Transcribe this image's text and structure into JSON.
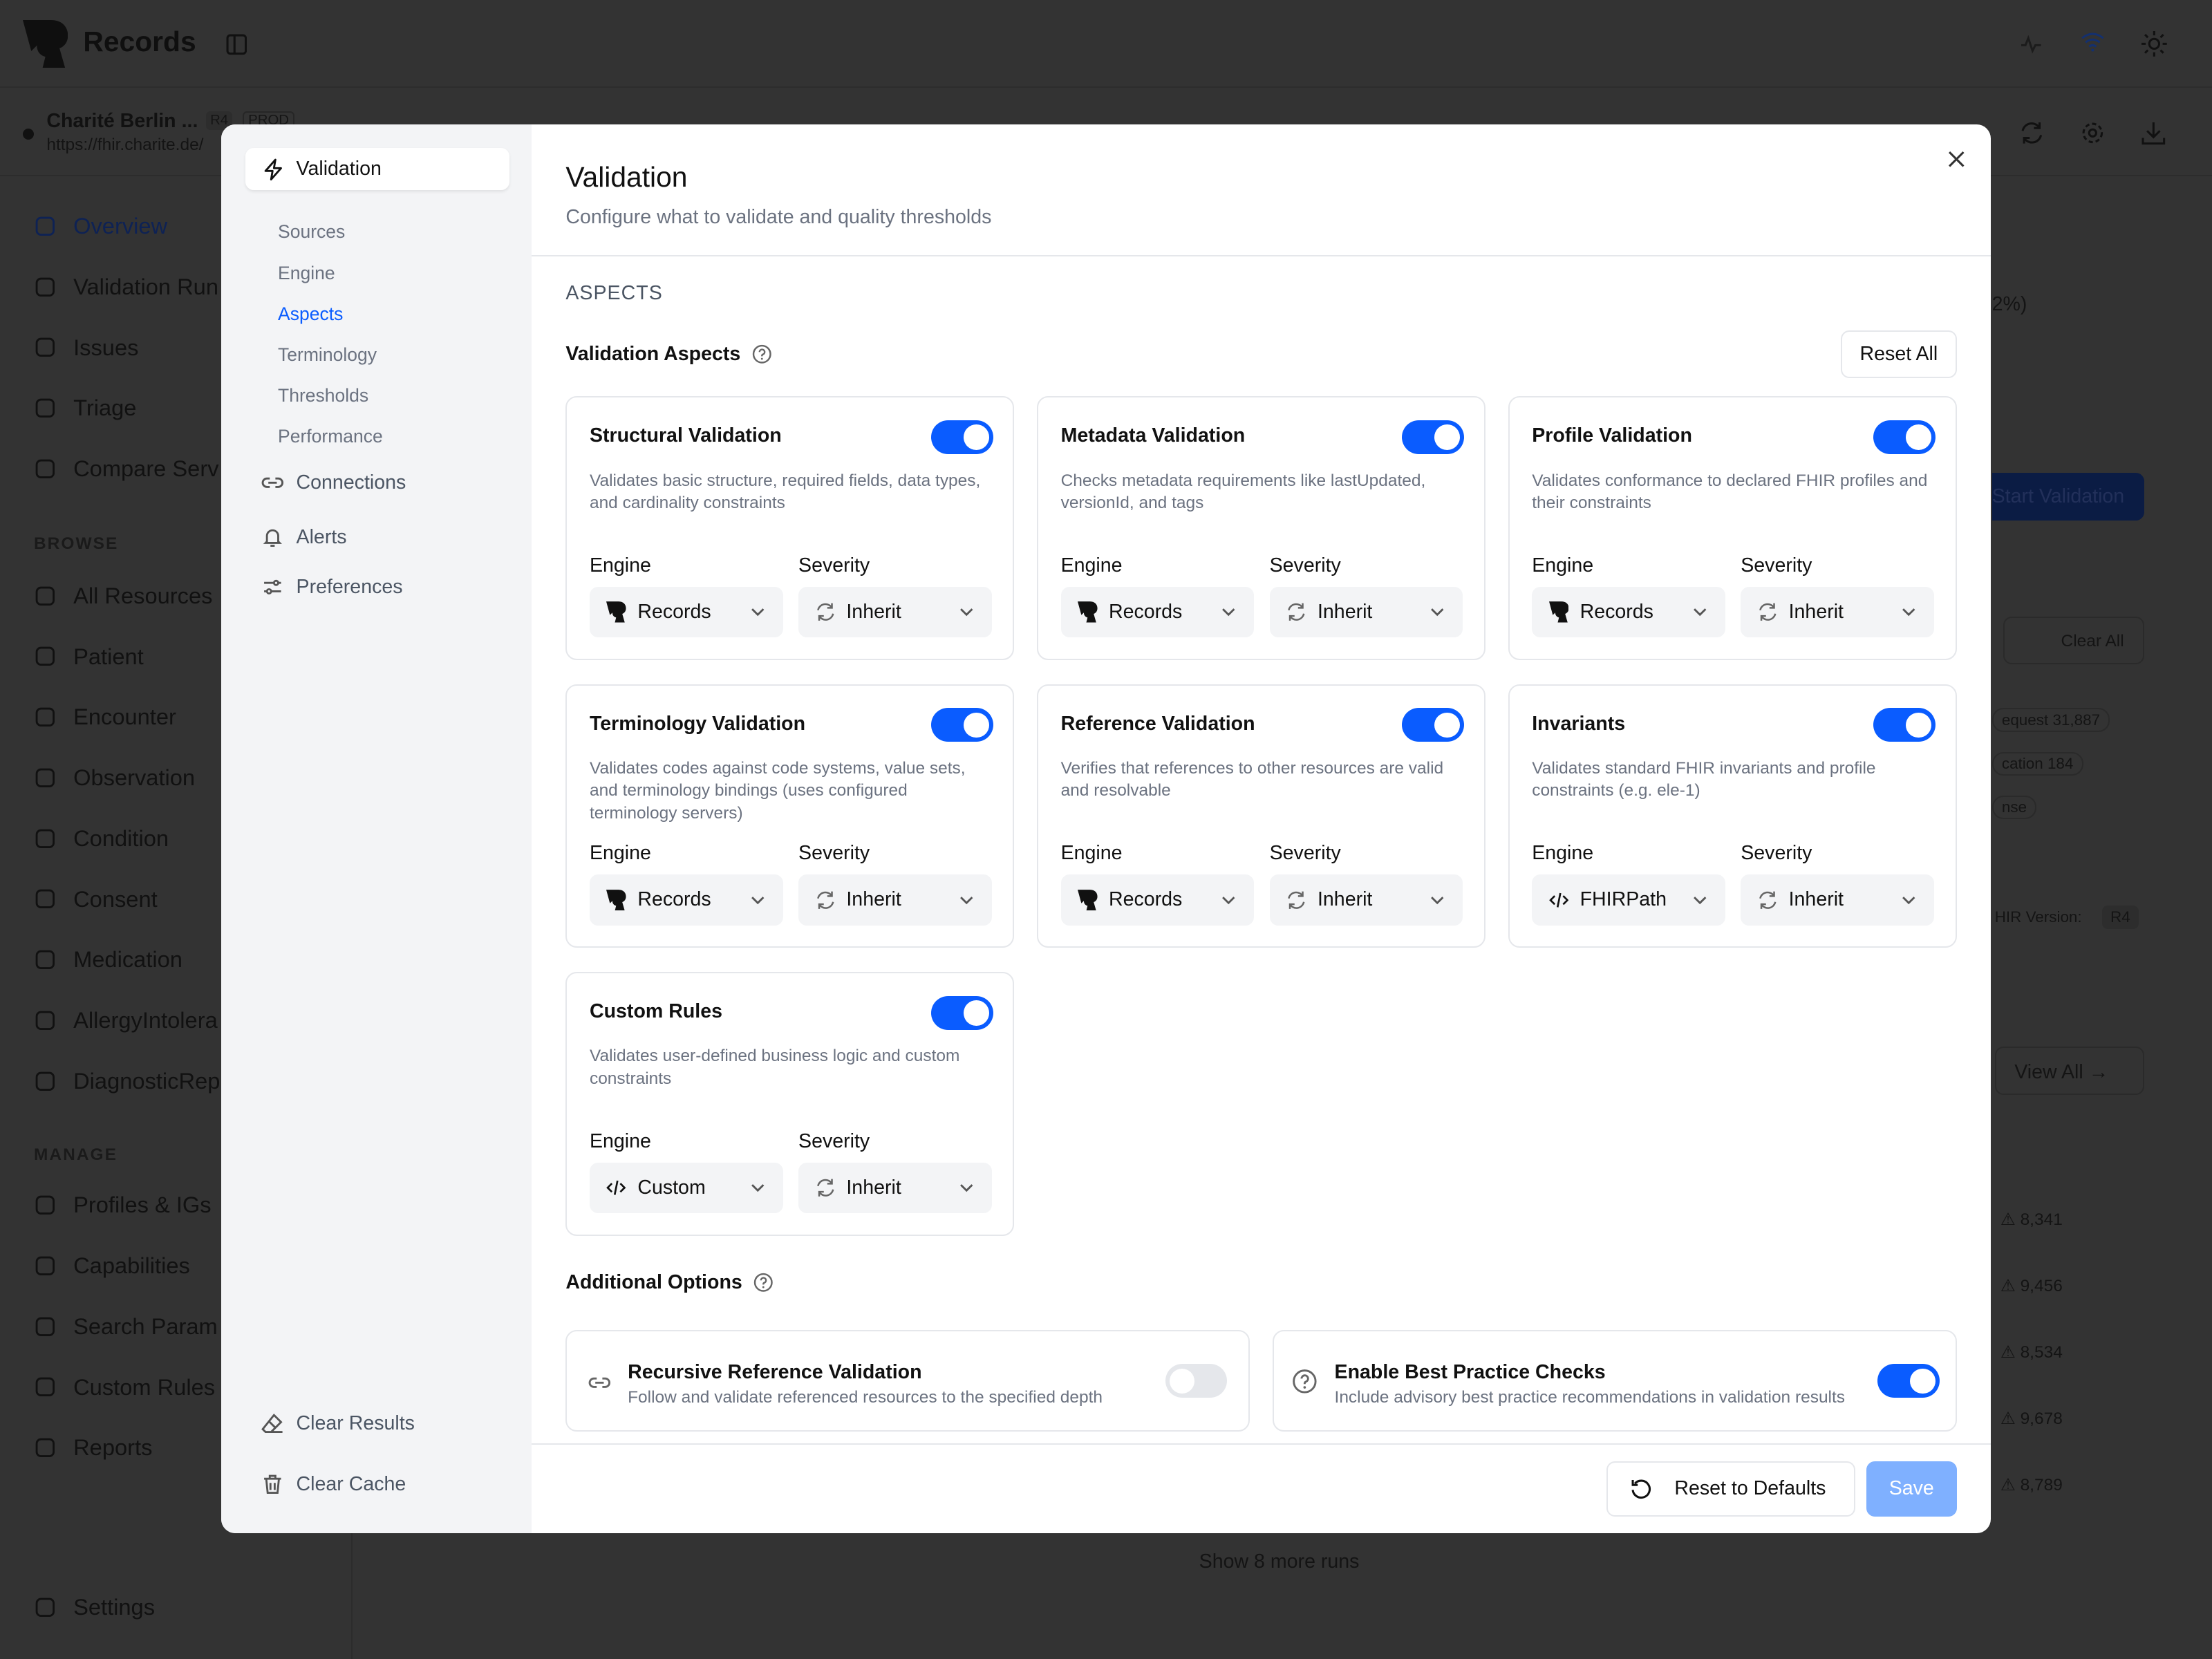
{
  "app": {
    "name": "Records",
    "server_name": "Charité Berlin ...",
    "fhir_badge": "R4",
    "env_badge": "PROD",
    "server_url": "https://fhir.charite.de/"
  },
  "sidebar": {
    "items": [
      {
        "label": "Overview",
        "icon": "pie-chart-icon"
      },
      {
        "label": "Validation Run",
        "icon": "play-icon"
      },
      {
        "label": "Issues",
        "icon": "warning-icon"
      },
      {
        "label": "Triage",
        "icon": "clipboard-icon"
      },
      {
        "label": "Compare Serv",
        "icon": "compare-icon"
      }
    ],
    "browse_header": "BROWSE",
    "browse": [
      "All Resources",
      "Patient",
      "Encounter",
      "Observation",
      "Condition",
      "Consent",
      "Medication",
      "AllergyIntolera",
      "DiagnosticRep"
    ],
    "manage_header": "MANAGE",
    "manage": [
      "Profiles & IGs",
      "Capabilities",
      "Search Param",
      "Custom Rules",
      "Reports"
    ],
    "settings": "Settings"
  },
  "background": {
    "percent_fragment": "2%)",
    "start_validation": "Start Validation",
    "clear_all": "Clear All",
    "chips": [
      {
        "label": "equest",
        "count": "31,887"
      },
      {
        "label": "cation",
        "count": "184"
      },
      {
        "label": "nse",
        "count": ""
      }
    ],
    "fhir_version_label": "HIR Version:",
    "fhir_version": "R4",
    "view_all": "View All",
    "warnings": [
      "8,341",
      "9,456",
      "8,534",
      "9,678",
      "8,789"
    ],
    "show_more": "Show 8 more runs"
  },
  "modal": {
    "nav": {
      "active": "Validation",
      "sub": [
        "Sources",
        "Engine",
        "Aspects",
        "Terminology",
        "Thresholds",
        "Performance"
      ],
      "active_sub": "Aspects",
      "items": [
        "Connections",
        "Alerts",
        "Preferences"
      ],
      "bottom": [
        "Clear Results",
        "Clear Cache"
      ]
    },
    "title": "Validation",
    "subtitle": "Configure what to validate and quality thresholds",
    "section": "ASPECTS",
    "aspects_heading": "Validation Aspects",
    "reset_all": "Reset All",
    "engine_label": "Engine",
    "severity_label": "Severity",
    "aspects": [
      {
        "title": "Structural Validation",
        "desc": "Validates basic structure, required fields, data types, and cardinality constraints",
        "enabled": true,
        "engine": "Records",
        "engine_icon": "records-logo-icon",
        "severity": "Inherit"
      },
      {
        "title": "Metadata Validation",
        "desc": "Checks metadata requirements like lastUpdated, versionId, and tags",
        "enabled": true,
        "engine": "Records",
        "engine_icon": "records-logo-icon",
        "severity": "Inherit"
      },
      {
        "title": "Profile Validation",
        "desc": "Validates conformance to declared FHIR profiles and their constraints",
        "enabled": true,
        "engine": "Records",
        "engine_icon": "records-logo-icon",
        "severity": "Inherit"
      },
      {
        "title": "Terminology Validation",
        "desc": "Validates codes against code systems, value sets, and terminology bindings (uses configured terminology servers)",
        "enabled": true,
        "engine": "Records",
        "engine_icon": "records-logo-icon",
        "severity": "Inherit"
      },
      {
        "title": "Reference Validation",
        "desc": "Verifies that references to other resources are valid and resolvable",
        "enabled": true,
        "engine": "Records",
        "engine_icon": "records-logo-icon",
        "severity": "Inherit"
      },
      {
        "title": "Invariants",
        "desc": "Validates standard FHIR invariants and profile constraints (e.g. ele-1)",
        "enabled": true,
        "engine": "FHIRPath",
        "engine_icon": "code-icon",
        "severity": "Inherit"
      },
      {
        "title": "Custom Rules",
        "desc": "Validates user-defined business logic and custom constraints",
        "enabled": true,
        "engine": "Custom",
        "engine_icon": "code-icon",
        "severity": "Inherit"
      }
    ],
    "additional_heading": "Additional Options",
    "options": [
      {
        "title": "Recursive Reference Validation",
        "desc": "Follow and validate referenced resources to the specified depth",
        "enabled": false,
        "icon": "link-icon"
      },
      {
        "title": "Enable Best Practice Checks",
        "desc": "Include advisory best practice recommendations in validation results",
        "enabled": true,
        "icon": "help-circle-icon"
      }
    ],
    "reset_defaults": "Reset to Defaults",
    "save": "Save"
  },
  "colors": {
    "accent": "#0a5cff",
    "save_disabled": "#7fb0ff",
    "nav_bg": "#f3f4f6"
  }
}
